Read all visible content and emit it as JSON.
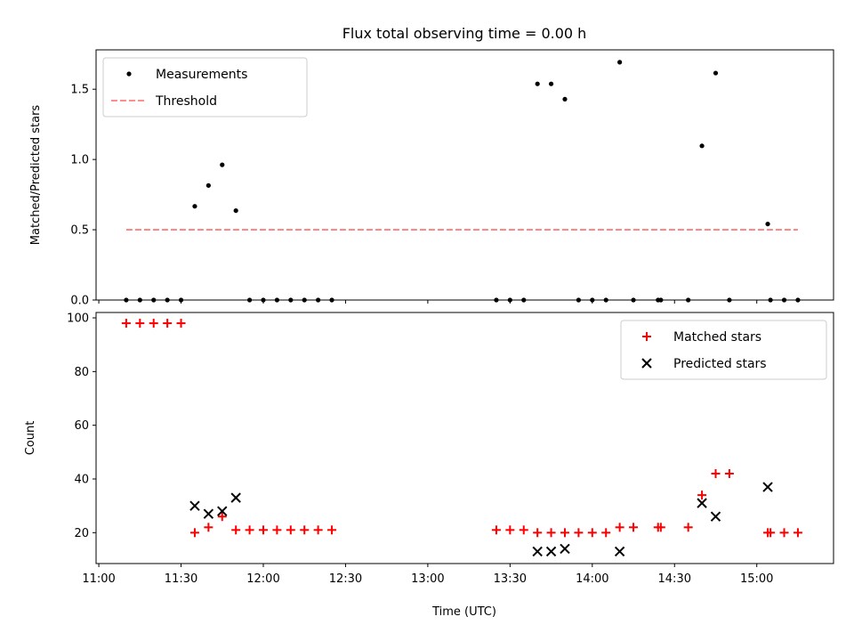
{
  "chart_data": {
    "title": "Flux total observing time = 0.00 h",
    "xlabel": "Time (UTC)",
    "xlim": [
      "10:59",
      "15:28"
    ],
    "xticks": [
      "11:00",
      "11:30",
      "12:00",
      "12:30",
      "13:00",
      "13:30",
      "14:00",
      "14:30",
      "15:00"
    ],
    "panels": [
      {
        "type": "scatter",
        "ylabel": "Matched/Predicted stars",
        "ylim": [
          0,
          1.78
        ],
        "yticks": [
          "0.0",
          "0.5",
          "1.0",
          "1.5"
        ],
        "legend": {
          "placement": "top-left"
        },
        "series": [
          {
            "name": "Measurements",
            "marker": "dot",
            "color": "#000000",
            "points": [
              [
                "11:10",
                0
              ],
              [
                "11:15",
                0
              ],
              [
                "11:20",
                0
              ],
              [
                "11:25",
                0
              ],
              [
                "11:30",
                0
              ],
              [
                "11:35",
                0.667
              ],
              [
                "11:40",
                0.815
              ],
              [
                "11:45",
                0.962
              ],
              [
                "11:50",
                0.636
              ],
              [
                "11:55",
                0
              ],
              [
                "12:00",
                0
              ],
              [
                "12:05",
                0
              ],
              [
                "12:10",
                0
              ],
              [
                "12:15",
                0
              ],
              [
                "12:20",
                0
              ],
              [
                "12:25",
                0
              ],
              [
                "13:25",
                0
              ],
              [
                "13:30",
                0
              ],
              [
                "13:35",
                0
              ],
              [
                "13:40",
                1.538
              ],
              [
                "13:45",
                1.538
              ],
              [
                "13:50",
                1.429
              ],
              [
                "13:55",
                0
              ],
              [
                "14:00",
                0
              ],
              [
                "14:05",
                0
              ],
              [
                "14:10",
                1.692
              ],
              [
                "14:15",
                0
              ],
              [
                "14:24",
                0
              ],
              [
                "14:25",
                0
              ],
              [
                "14:35",
                0
              ],
              [
                "14:40",
                1.097
              ],
              [
                "14:45",
                1.615
              ],
              [
                "14:50",
                0
              ],
              [
                "15:04",
                0.541
              ],
              [
                "15:05",
                0
              ],
              [
                "15:10",
                0
              ],
              [
                "15:15",
                0
              ]
            ]
          },
          {
            "name": "Threshold",
            "marker": "dashed-line",
            "color": "#ff7f7f",
            "points": [
              [
                "11:10",
                0.5
              ],
              [
                "15:15",
                0.5
              ]
            ]
          }
        ]
      },
      {
        "type": "scatter",
        "ylabel": "Count",
        "ylim": [
          8.5,
          102
        ],
        "yticks": [
          "20",
          "40",
          "60",
          "80",
          "100"
        ],
        "legend": {
          "placement": "top-right"
        },
        "series": [
          {
            "name": "Matched stars",
            "marker": "plus",
            "color": "#ff0000",
            "points": [
              [
                "11:10",
                98
              ],
              [
                "11:15",
                98
              ],
              [
                "11:20",
                98
              ],
              [
                "11:25",
                98
              ],
              [
                "11:30",
                98
              ],
              [
                "11:35",
                20
              ],
              [
                "11:40",
                22
              ],
              [
                "11:45",
                26
              ],
              [
                "11:50",
                21
              ],
              [
                "11:55",
                21
              ],
              [
                "12:00",
                21
              ],
              [
                "12:05",
                21
              ],
              [
                "12:10",
                21
              ],
              [
                "12:15",
                21
              ],
              [
                "12:20",
                21
              ],
              [
                "12:25",
                21
              ],
              [
                "13:25",
                21
              ],
              [
                "13:30",
                21
              ],
              [
                "13:35",
                21
              ],
              [
                "13:40",
                20
              ],
              [
                "13:45",
                20
              ],
              [
                "13:50",
                20
              ],
              [
                "13:55",
                20
              ],
              [
                "14:00",
                20
              ],
              [
                "14:05",
                20
              ],
              [
                "14:10",
                22
              ],
              [
                "14:15",
                22
              ],
              [
                "14:24",
                22
              ],
              [
                "14:25",
                22
              ],
              [
                "14:35",
                22
              ],
              [
                "14:40",
                34
              ],
              [
                "14:45",
                42
              ],
              [
                "14:50",
                42
              ],
              [
                "15:04",
                20
              ],
              [
                "15:05",
                20
              ],
              [
                "15:10",
                20
              ],
              [
                "15:15",
                20
              ]
            ]
          },
          {
            "name": "Predicted stars",
            "marker": "x",
            "color": "#000000",
            "points": [
              [
                "11:35",
                30
              ],
              [
                "11:40",
                27
              ],
              [
                "11:45",
                28
              ],
              [
                "11:50",
                33
              ],
              [
                "13:40",
                13
              ],
              [
                "13:45",
                13
              ],
              [
                "13:50",
                14
              ],
              [
                "14:10",
                13
              ],
              [
                "14:40",
                31
              ],
              [
                "14:45",
                26
              ],
              [
                "15:04",
                37
              ]
            ]
          }
        ]
      }
    ]
  }
}
